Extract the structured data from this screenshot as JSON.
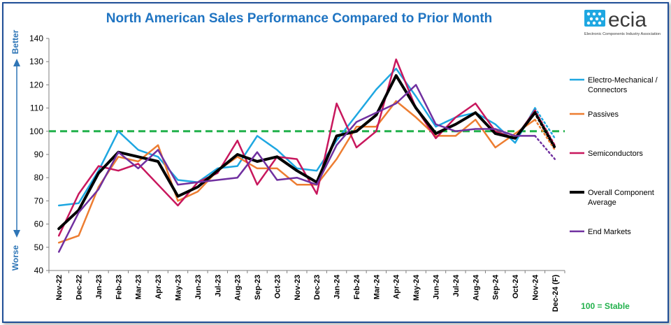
{
  "logo": {
    "name": "ecia",
    "tagline": "Electronic Components Industry Association"
  },
  "chart_data": {
    "type": "line",
    "title": "North American Sales Performance Compared to Prior Month",
    "y_top_label": "Better",
    "y_bottom_label": "Worse",
    "ylim": [
      40,
      140
    ],
    "yticks": [
      40,
      50,
      60,
      70,
      80,
      90,
      100,
      110,
      120,
      130,
      140
    ],
    "categories": [
      "Nov-22",
      "Dec-22",
      "Jan-23",
      "Feb-23",
      "Mar-23",
      "Apr-23",
      "May-23",
      "Jun-23",
      "Jul-23",
      "Aug-23",
      "Sep-23",
      "Oct-23",
      "Nov-23",
      "Dec-23",
      "Jan-24",
      "Feb-24",
      "Mar-24",
      "Apr-24",
      "May-24",
      "Jun-24",
      "Jul-24",
      "Aug-24",
      "Sep-24",
      "Oct-24",
      "Nov-24",
      "Dec-24 (F)"
    ],
    "reference_line": {
      "value": 100,
      "label": "100 = Stable",
      "color": "#22b14c"
    },
    "grid": false,
    "legend_position": "right",
    "series": [
      {
        "name": "Electro-Mechanical / Connectors",
        "color": "#1ea7e1",
        "width": 2.5,
        "values": [
          68,
          69,
          83,
          100,
          92,
          89,
          79,
          78,
          84,
          85,
          98,
          92,
          84,
          83,
          96,
          107,
          118,
          127,
          115,
          102,
          106,
          108,
          103,
          95,
          110,
          97
        ]
      },
      {
        "name": "Passives",
        "color": "#ed7d31",
        "width": 2.5,
        "values": [
          52,
          55,
          76,
          89,
          87,
          94,
          70,
          74,
          83,
          89,
          84,
          84,
          77,
          77,
          88,
          102,
          102,
          113,
          106,
          98,
          98,
          105,
          93,
          99,
          105,
          92
        ]
      },
      {
        "name": "Semiconductors",
        "color": "#c8175d",
        "width": 2.5,
        "values": [
          55,
          73,
          85,
          83,
          86,
          77,
          68,
          78,
          82,
          96,
          77,
          89,
          88,
          73,
          112,
          93,
          100,
          131,
          110,
          97,
          106,
          112,
          100,
          97,
          109,
          94
        ]
      },
      {
        "name": "Overall Component Average",
        "color": "#000000",
        "width": 4,
        "values": [
          58,
          66,
          82,
          91,
          89,
          87,
          72,
          76,
          83,
          90,
          87,
          89,
          83,
          78,
          98,
          100,
          107,
          124,
          110,
          99,
          103,
          108,
          99,
          97,
          108,
          93
        ]
      },
      {
        "name": "End Markets",
        "color": "#7030a0",
        "width": 2.5,
        "values": [
          48,
          65,
          75,
          91,
          84,
          92,
          77,
          78,
          79,
          80,
          91,
          79,
          80,
          77,
          94,
          104,
          108,
          112,
          120,
          103,
          100,
          101,
          101,
          98,
          98,
          88
        ]
      }
    ]
  }
}
